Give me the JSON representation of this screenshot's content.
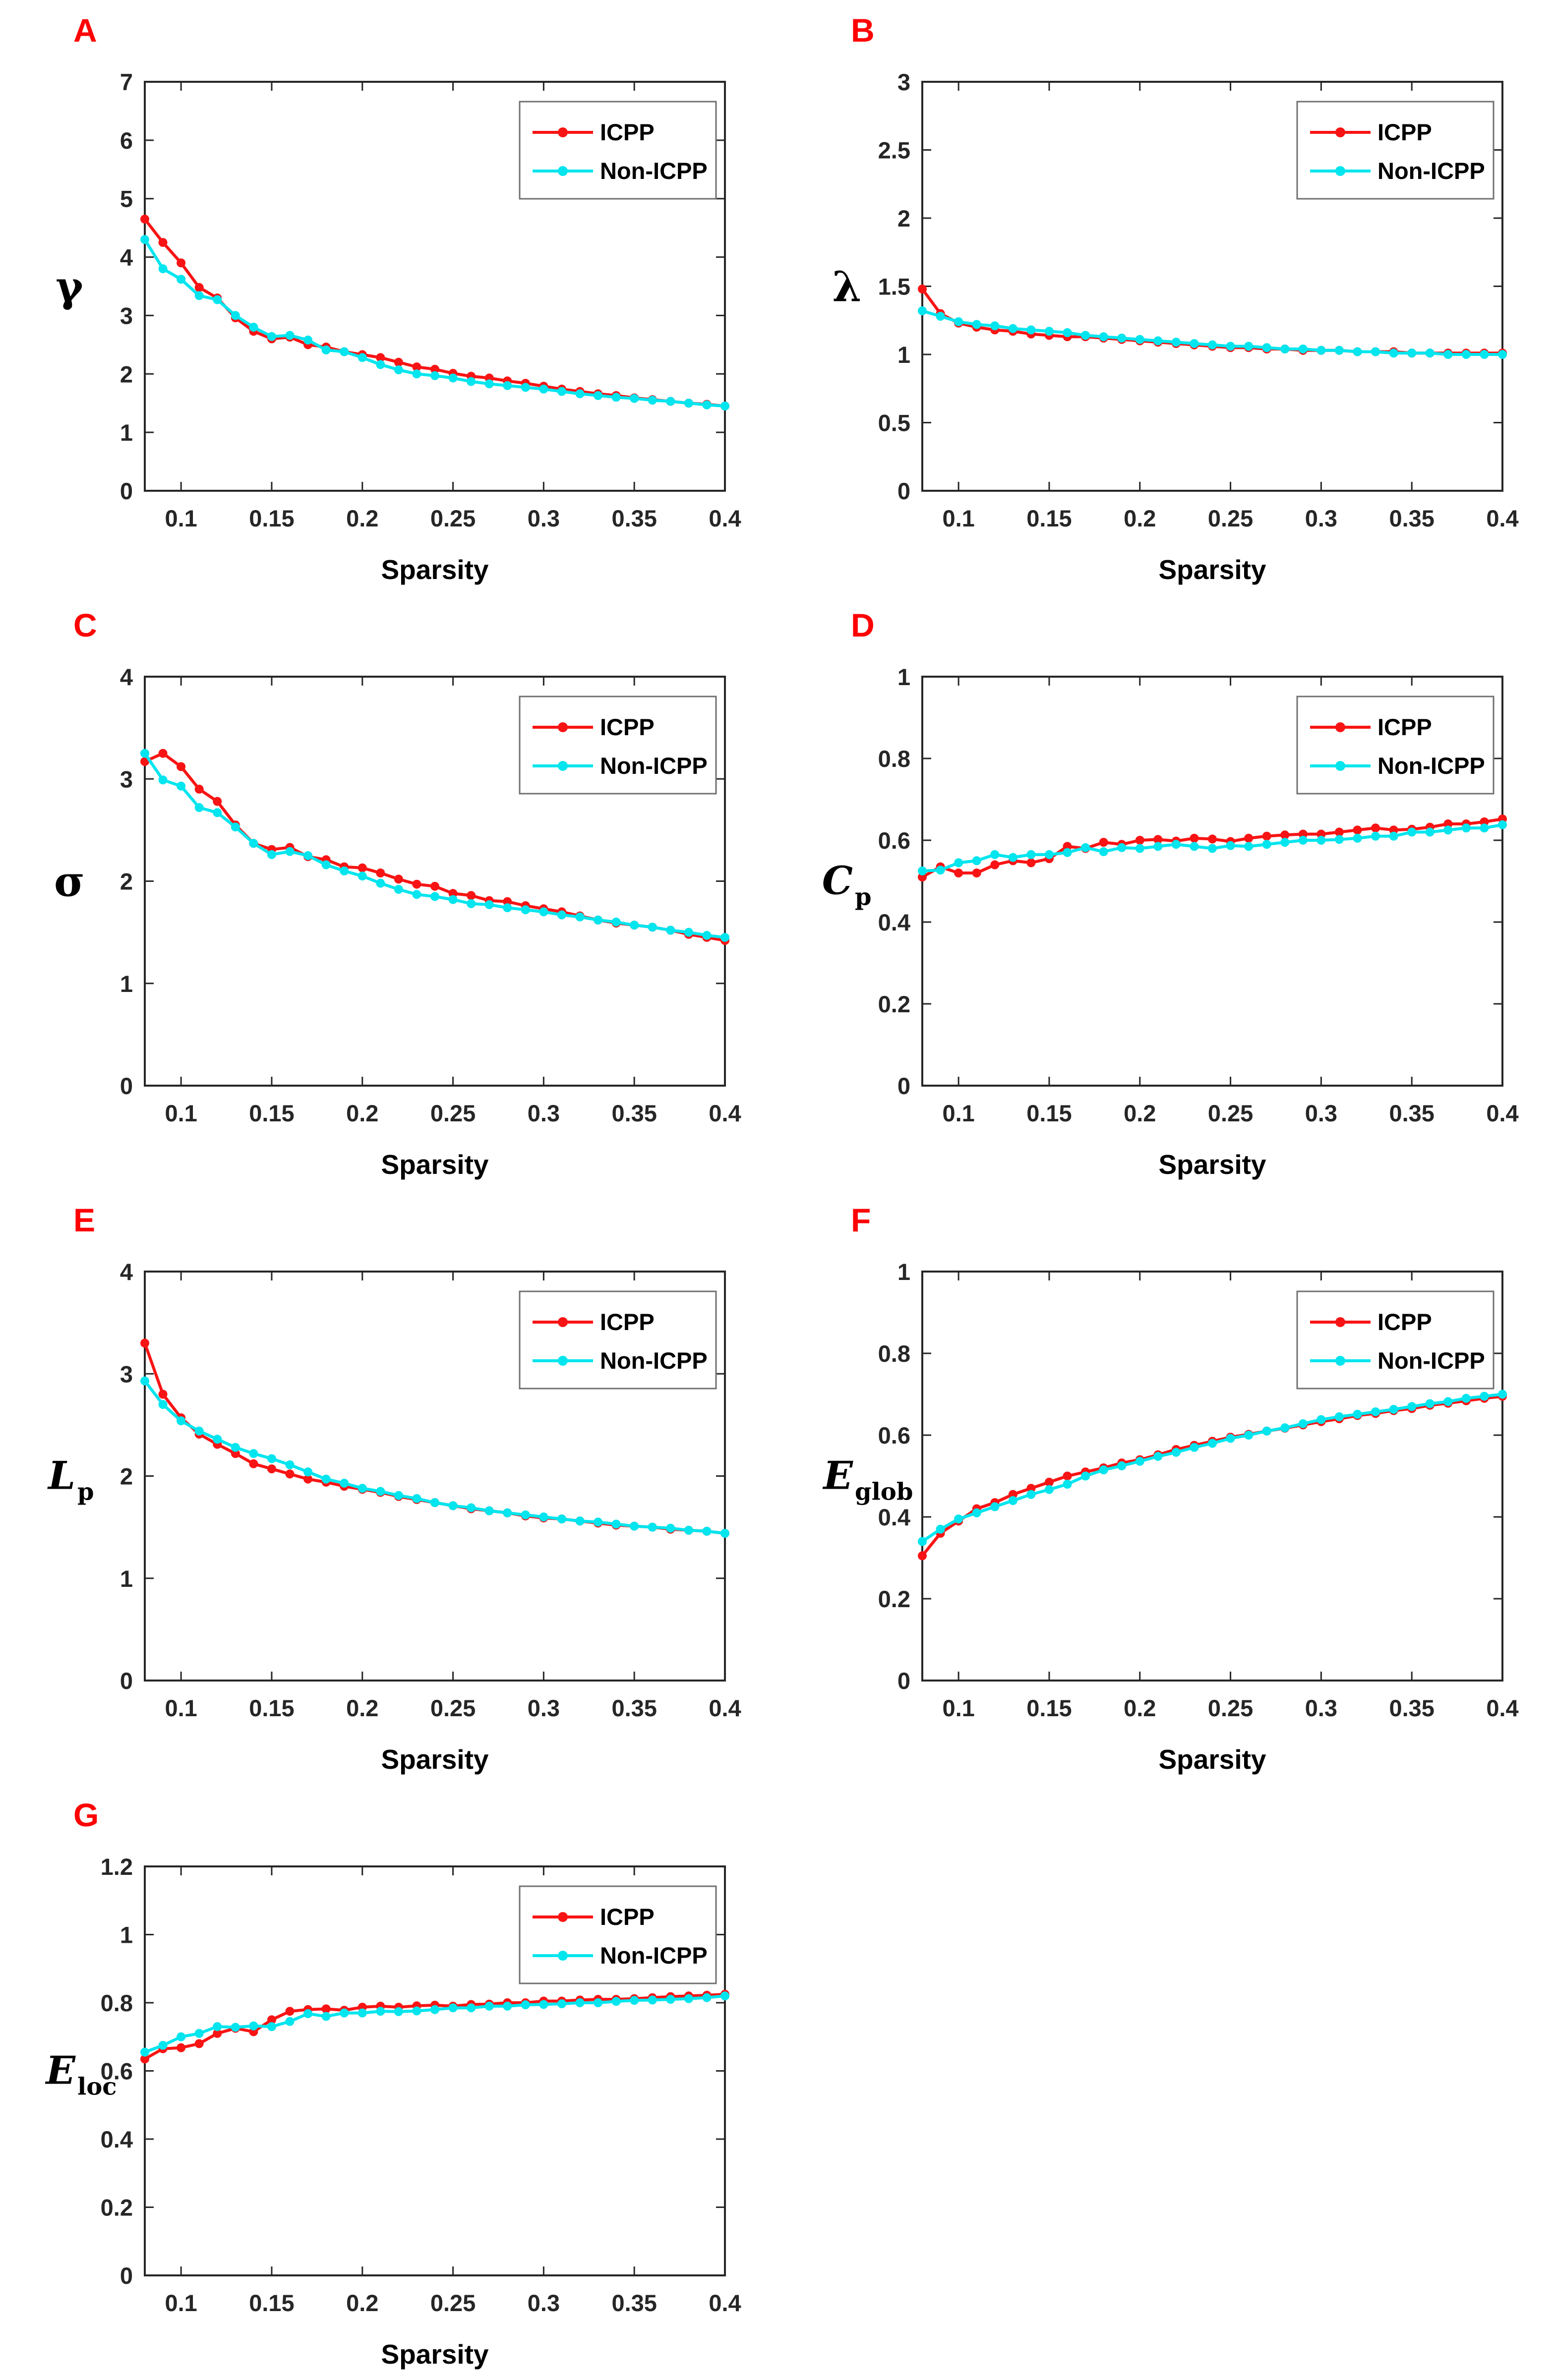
{
  "figure": {
    "xlabel": "Sparsity",
    "panel_letter_color": "#ff0000",
    "axis_color": "#262626",
    "background_color": "#ffffff",
    "series_colors": {
      "ICPP": "#f81414",
      "Non-ICPP": "#00e5ee"
    },
    "legend_entries": [
      "ICPP",
      "Non-ICPP"
    ],
    "legend_position": "top-right"
  },
  "chart_data": [
    {
      "type": "line",
      "panel": "A",
      "ylabel": {
        "main": "γ",
        "sub": "",
        "greek": true
      },
      "xlabel": "Sparsity",
      "xlim": [
        0.08,
        0.4
      ],
      "ylim": [
        0,
        7
      ],
      "yticks": [
        0,
        1,
        2,
        3,
        4,
        5,
        6,
        7
      ],
      "xticks": [
        0.1,
        0.15,
        0.2,
        0.25,
        0.3,
        0.35,
        0.4
      ],
      "legend_position": "top-right",
      "x": [
        0.08,
        0.09,
        0.1,
        0.11,
        0.12,
        0.13,
        0.14,
        0.15,
        0.16,
        0.17,
        0.18,
        0.19,
        0.2,
        0.21,
        0.22,
        0.23,
        0.24,
        0.25,
        0.26,
        0.27,
        0.28,
        0.29,
        0.3,
        0.31,
        0.32,
        0.33,
        0.34,
        0.35,
        0.36,
        0.37,
        0.38,
        0.39,
        0.4
      ],
      "series": [
        {
          "name": "ICPP",
          "color": "#f81414",
          "values": [
            4.65,
            4.25,
            3.9,
            3.48,
            3.3,
            2.96,
            2.73,
            2.6,
            2.63,
            2.5,
            2.46,
            2.38,
            2.33,
            2.28,
            2.2,
            2.12,
            2.08,
            2.01,
            1.96,
            1.93,
            1.88,
            1.84,
            1.79,
            1.74,
            1.7,
            1.66,
            1.63,
            1.59,
            1.56,
            1.53,
            1.5,
            1.48,
            1.45
          ]
        },
        {
          "name": "Non-ICPP",
          "color": "#00e5ee",
          "values": [
            4.3,
            3.8,
            3.62,
            3.34,
            3.27,
            3.0,
            2.8,
            2.64,
            2.66,
            2.58,
            2.41,
            2.38,
            2.28,
            2.16,
            2.07,
            2.0,
            1.97,
            1.93,
            1.87,
            1.83,
            1.8,
            1.77,
            1.74,
            1.7,
            1.66,
            1.63,
            1.6,
            1.58,
            1.55,
            1.53,
            1.5,
            1.47,
            1.45
          ]
        }
      ]
    },
    {
      "type": "line",
      "panel": "B",
      "ylabel": {
        "main": "λ",
        "sub": "",
        "greek": true
      },
      "xlabel": "Sparsity",
      "xlim": [
        0.08,
        0.4
      ],
      "ylim": [
        0,
        3
      ],
      "yticks": [
        0,
        0.5,
        1,
        1.5,
        2,
        2.5,
        3
      ],
      "xticks": [
        0.1,
        0.15,
        0.2,
        0.25,
        0.3,
        0.35,
        0.4
      ],
      "legend_position": "top-right",
      "x": [
        0.08,
        0.09,
        0.1,
        0.11,
        0.12,
        0.13,
        0.14,
        0.15,
        0.16,
        0.17,
        0.18,
        0.19,
        0.2,
        0.21,
        0.22,
        0.23,
        0.24,
        0.25,
        0.26,
        0.27,
        0.28,
        0.29,
        0.3,
        0.31,
        0.32,
        0.33,
        0.34,
        0.35,
        0.36,
        0.37,
        0.38,
        0.39,
        0.4
      ],
      "series": [
        {
          "name": "ICPP",
          "color": "#f81414",
          "values": [
            1.48,
            1.3,
            1.23,
            1.2,
            1.18,
            1.17,
            1.15,
            1.14,
            1.13,
            1.13,
            1.12,
            1.11,
            1.1,
            1.09,
            1.08,
            1.07,
            1.06,
            1.05,
            1.05,
            1.04,
            1.04,
            1.03,
            1.03,
            1.03,
            1.02,
            1.02,
            1.02,
            1.01,
            1.01,
            1.01,
            1.01,
            1.01,
            1.01
          ]
        },
        {
          "name": "Non-ICPP",
          "color": "#00e5ee",
          "values": [
            1.32,
            1.28,
            1.24,
            1.22,
            1.21,
            1.19,
            1.18,
            1.17,
            1.16,
            1.14,
            1.13,
            1.12,
            1.11,
            1.1,
            1.09,
            1.08,
            1.07,
            1.06,
            1.06,
            1.05,
            1.04,
            1.04,
            1.03,
            1.03,
            1.02,
            1.02,
            1.01,
            1.01,
            1.01,
            1.0,
            1.0,
            1.0,
            1.0
          ]
        }
      ]
    },
    {
      "type": "line",
      "panel": "C",
      "ylabel": {
        "main": "σ",
        "sub": "",
        "greek": true
      },
      "xlabel": "Sparsity",
      "xlim": [
        0.08,
        0.4
      ],
      "ylim": [
        0,
        4
      ],
      "yticks": [
        0,
        1,
        2,
        3,
        4
      ],
      "xticks": [
        0.1,
        0.15,
        0.2,
        0.25,
        0.3,
        0.35,
        0.4
      ],
      "legend_position": "top-right",
      "x": [
        0.08,
        0.09,
        0.1,
        0.11,
        0.12,
        0.13,
        0.14,
        0.15,
        0.16,
        0.17,
        0.18,
        0.19,
        0.2,
        0.21,
        0.22,
        0.23,
        0.24,
        0.25,
        0.26,
        0.27,
        0.28,
        0.29,
        0.3,
        0.31,
        0.32,
        0.33,
        0.34,
        0.35,
        0.36,
        0.37,
        0.38,
        0.39,
        0.4
      ],
      "series": [
        {
          "name": "ICPP",
          "color": "#f81414",
          "values": [
            3.17,
            3.25,
            3.12,
            2.9,
            2.78,
            2.55,
            2.37,
            2.31,
            2.33,
            2.24,
            2.21,
            2.14,
            2.13,
            2.08,
            2.02,
            1.97,
            1.95,
            1.88,
            1.86,
            1.81,
            1.8,
            1.76,
            1.73,
            1.7,
            1.66,
            1.62,
            1.59,
            1.57,
            1.55,
            1.52,
            1.48,
            1.45,
            1.42
          ]
        },
        {
          "name": "Non-ICPP",
          "color": "#00e5ee",
          "values": [
            3.25,
            2.99,
            2.93,
            2.72,
            2.67,
            2.53,
            2.37,
            2.26,
            2.29,
            2.25,
            2.16,
            2.1,
            2.05,
            1.98,
            1.92,
            1.87,
            1.85,
            1.82,
            1.78,
            1.77,
            1.74,
            1.72,
            1.7,
            1.67,
            1.65,
            1.62,
            1.6,
            1.57,
            1.55,
            1.52,
            1.5,
            1.47,
            1.45
          ]
        }
      ]
    },
    {
      "type": "line",
      "panel": "D",
      "ylabel": {
        "main": "C",
        "sub": "p",
        "greek": false
      },
      "xlabel": "Sparsity",
      "xlim": [
        0.08,
        0.4
      ],
      "ylim": [
        0,
        1
      ],
      "yticks": [
        0,
        0.2,
        0.4,
        0.6,
        0.8,
        1
      ],
      "xticks": [
        0.1,
        0.15,
        0.2,
        0.25,
        0.3,
        0.35,
        0.4
      ],
      "legend_position": "top-right",
      "x": [
        0.08,
        0.09,
        0.1,
        0.11,
        0.12,
        0.13,
        0.14,
        0.15,
        0.16,
        0.17,
        0.18,
        0.19,
        0.2,
        0.21,
        0.22,
        0.23,
        0.24,
        0.25,
        0.26,
        0.27,
        0.28,
        0.29,
        0.3,
        0.31,
        0.32,
        0.33,
        0.34,
        0.35,
        0.36,
        0.37,
        0.38,
        0.39,
        0.4
      ],
      "series": [
        {
          "name": "ICPP",
          "color": "#f81414",
          "values": [
            0.51,
            0.535,
            0.52,
            0.52,
            0.54,
            0.55,
            0.545,
            0.555,
            0.585,
            0.58,
            0.595,
            0.59,
            0.6,
            0.602,
            0.598,
            0.605,
            0.603,
            0.597,
            0.605,
            0.61,
            0.613,
            0.615,
            0.615,
            0.62,
            0.625,
            0.63,
            0.625,
            0.627,
            0.632,
            0.64,
            0.64,
            0.645,
            0.652
          ]
        },
        {
          "name": "Non-ICPP",
          "color": "#00e5ee",
          "values": [
            0.525,
            0.527,
            0.545,
            0.55,
            0.565,
            0.558,
            0.565,
            0.565,
            0.57,
            0.582,
            0.572,
            0.582,
            0.58,
            0.585,
            0.59,
            0.585,
            0.58,
            0.587,
            0.585,
            0.59,
            0.595,
            0.6,
            0.6,
            0.602,
            0.605,
            0.61,
            0.61,
            0.62,
            0.62,
            0.625,
            0.63,
            0.63,
            0.638
          ]
        }
      ]
    },
    {
      "type": "line",
      "panel": "E",
      "ylabel": {
        "main": "L",
        "sub": "p",
        "greek": false
      },
      "xlabel": "Sparsity",
      "xlim": [
        0.08,
        0.4
      ],
      "ylim": [
        0,
        4
      ],
      "yticks": [
        0,
        1,
        2,
        3,
        4
      ],
      "xticks": [
        0.1,
        0.15,
        0.2,
        0.25,
        0.3,
        0.35,
        0.4
      ],
      "legend_position": "top-right",
      "x": [
        0.08,
        0.09,
        0.1,
        0.11,
        0.12,
        0.13,
        0.14,
        0.15,
        0.16,
        0.17,
        0.18,
        0.19,
        0.2,
        0.21,
        0.22,
        0.23,
        0.24,
        0.25,
        0.26,
        0.27,
        0.28,
        0.29,
        0.3,
        0.31,
        0.32,
        0.33,
        0.34,
        0.35,
        0.36,
        0.37,
        0.38,
        0.39,
        0.4
      ],
      "series": [
        {
          "name": "ICPP",
          "color": "#f81414",
          "values": [
            3.3,
            2.8,
            2.57,
            2.41,
            2.31,
            2.22,
            2.12,
            2.07,
            2.02,
            1.97,
            1.94,
            1.9,
            1.87,
            1.84,
            1.8,
            1.77,
            1.74,
            1.71,
            1.68,
            1.66,
            1.64,
            1.61,
            1.59,
            1.58,
            1.56,
            1.54,
            1.52,
            1.51,
            1.5,
            1.48,
            1.47,
            1.46,
            1.44
          ]
        },
        {
          "name": "Non-ICPP",
          "color": "#00e5ee",
          "values": [
            2.93,
            2.7,
            2.54,
            2.44,
            2.36,
            2.28,
            2.22,
            2.17,
            2.11,
            2.04,
            1.97,
            1.93,
            1.88,
            1.85,
            1.81,
            1.78,
            1.74,
            1.71,
            1.69,
            1.66,
            1.64,
            1.62,
            1.6,
            1.58,
            1.56,
            1.55,
            1.53,
            1.51,
            1.5,
            1.49,
            1.47,
            1.46,
            1.44
          ]
        }
      ]
    },
    {
      "type": "line",
      "panel": "F",
      "ylabel": {
        "main": "E",
        "sub": "glob",
        "greek": false
      },
      "xlabel": "Sparsity",
      "xlim": [
        0.08,
        0.4
      ],
      "ylim": [
        0,
        1
      ],
      "yticks": [
        0,
        0.2,
        0.4,
        0.6,
        0.8,
        1
      ],
      "xticks": [
        0.1,
        0.15,
        0.2,
        0.25,
        0.3,
        0.35,
        0.4
      ],
      "legend_position": "top-right",
      "x": [
        0.08,
        0.09,
        0.1,
        0.11,
        0.12,
        0.13,
        0.14,
        0.15,
        0.16,
        0.17,
        0.18,
        0.19,
        0.2,
        0.21,
        0.22,
        0.23,
        0.24,
        0.25,
        0.26,
        0.27,
        0.28,
        0.29,
        0.3,
        0.31,
        0.32,
        0.33,
        0.34,
        0.35,
        0.36,
        0.37,
        0.38,
        0.39,
        0.4
      ],
      "series": [
        {
          "name": "ICPP",
          "color": "#f81414",
          "values": [
            0.305,
            0.36,
            0.39,
            0.42,
            0.435,
            0.455,
            0.47,
            0.485,
            0.5,
            0.51,
            0.52,
            0.532,
            0.54,
            0.552,
            0.565,
            0.575,
            0.585,
            0.595,
            0.602,
            0.61,
            0.617,
            0.625,
            0.633,
            0.64,
            0.648,
            0.653,
            0.66,
            0.665,
            0.673,
            0.678,
            0.684,
            0.69,
            0.695
          ]
        },
        {
          "name": "Non-ICPP",
          "color": "#00e5ee",
          "values": [
            0.34,
            0.37,
            0.395,
            0.41,
            0.425,
            0.44,
            0.455,
            0.467,
            0.48,
            0.5,
            0.515,
            0.525,
            0.536,
            0.548,
            0.558,
            0.57,
            0.58,
            0.592,
            0.6,
            0.61,
            0.618,
            0.628,
            0.638,
            0.645,
            0.651,
            0.657,
            0.663,
            0.67,
            0.677,
            0.682,
            0.69,
            0.695,
            0.7
          ]
        }
      ]
    },
    {
      "type": "line",
      "panel": "G",
      "ylabel": {
        "main": "E",
        "sub": "loc",
        "greek": false
      },
      "xlabel": "Sparsity",
      "xlim": [
        0.08,
        0.4
      ],
      "ylim": [
        0,
        1.2
      ],
      "yticks": [
        0,
        0.2,
        0.4,
        0.6,
        0.8,
        1,
        1.2
      ],
      "xticks": [
        0.1,
        0.15,
        0.2,
        0.25,
        0.3,
        0.35,
        0.4
      ],
      "legend_position": "top-right",
      "x": [
        0.08,
        0.09,
        0.1,
        0.11,
        0.12,
        0.13,
        0.14,
        0.15,
        0.16,
        0.17,
        0.18,
        0.19,
        0.2,
        0.21,
        0.22,
        0.23,
        0.24,
        0.25,
        0.26,
        0.27,
        0.28,
        0.29,
        0.3,
        0.31,
        0.32,
        0.33,
        0.34,
        0.35,
        0.36,
        0.37,
        0.38,
        0.39,
        0.4
      ],
      "series": [
        {
          "name": "ICPP",
          "color": "#f81414",
          "values": [
            0.635,
            0.665,
            0.668,
            0.68,
            0.71,
            0.725,
            0.715,
            0.75,
            0.775,
            0.78,
            0.782,
            0.778,
            0.787,
            0.79,
            0.787,
            0.791,
            0.793,
            0.79,
            0.795,
            0.796,
            0.8,
            0.8,
            0.805,
            0.805,
            0.808,
            0.81,
            0.81,
            0.812,
            0.815,
            0.818,
            0.82,
            0.822,
            0.825
          ]
        },
        {
          "name": "Non-ICPP",
          "color": "#00e5ee",
          "values": [
            0.655,
            0.675,
            0.7,
            0.71,
            0.73,
            0.728,
            0.732,
            0.73,
            0.745,
            0.768,
            0.76,
            0.77,
            0.77,
            0.775,
            0.774,
            0.776,
            0.78,
            0.785,
            0.785,
            0.79,
            0.79,
            0.794,
            0.795,
            0.797,
            0.8,
            0.8,
            0.804,
            0.807,
            0.808,
            0.81,
            0.812,
            0.815,
            0.82
          ]
        }
      ]
    }
  ]
}
